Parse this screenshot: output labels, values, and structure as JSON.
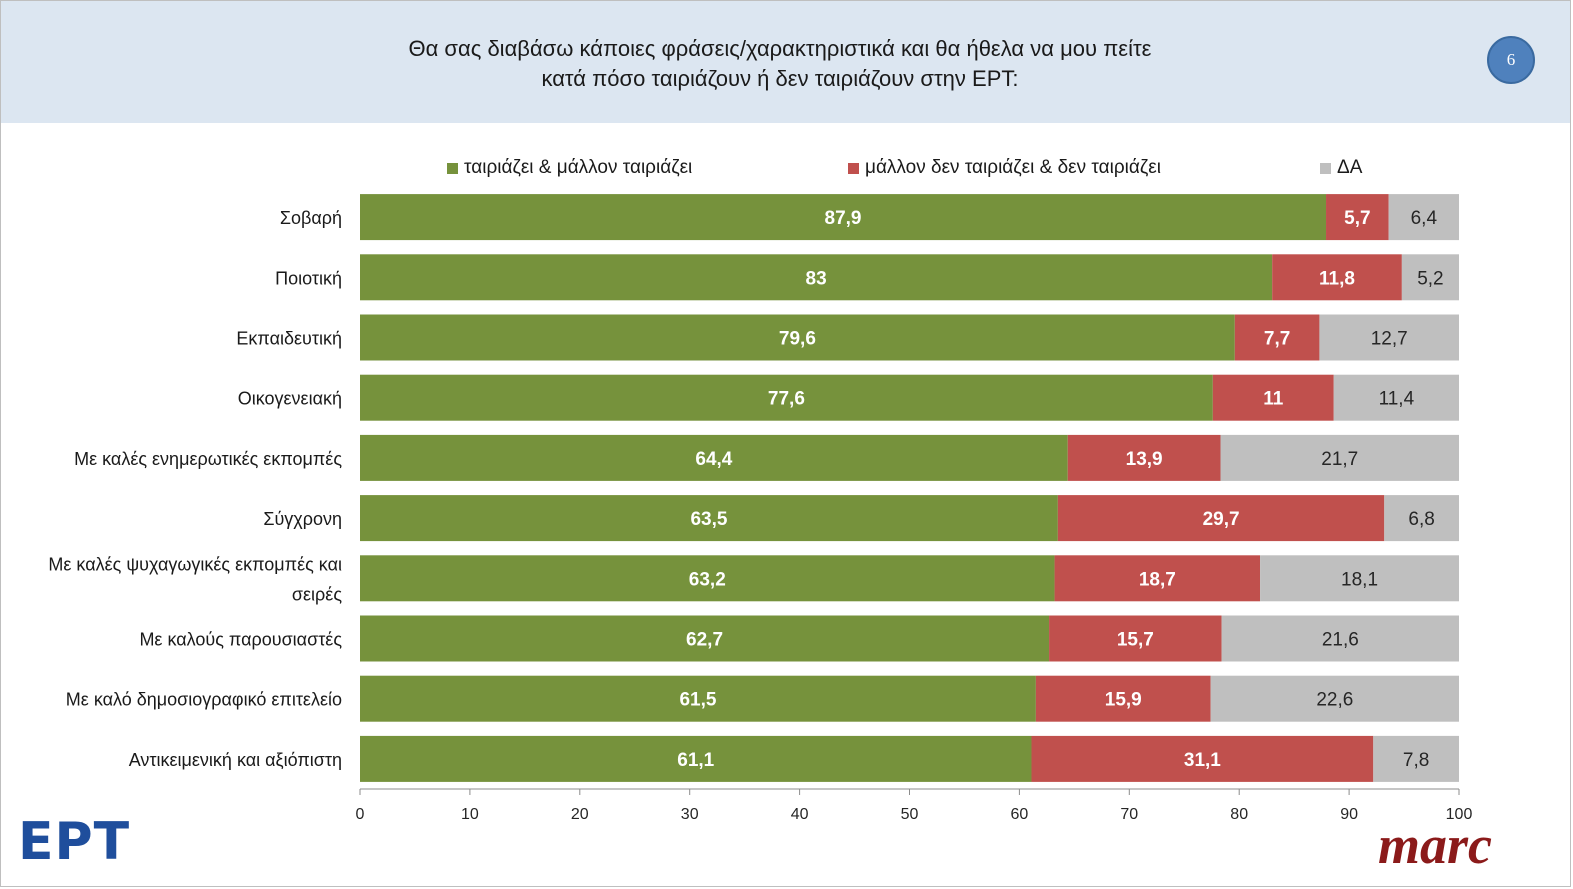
{
  "header": {
    "title_line1": "Θα σας διαβάσω κάποιες φράσεις/χαρακτηριστικά και θα ήθελα να μου πείτε",
    "title_line2": "κατά πόσο ταιριάζουν ή δεν ταιριάζουν στην ΕΡΤ:",
    "page_number": "6"
  },
  "logos": {
    "left": "ΕΡΤ",
    "right": "marc"
  },
  "colors": {
    "fit": "#76923c",
    "not_fit": "#c0504d",
    "dk": "#bfbfbf",
    "header_bg": "#dce6f1",
    "badge": "#4f81bd"
  },
  "chart_data": {
    "type": "bar",
    "orientation": "horizontal",
    "stacked": true,
    "categories": [
      "Σοβαρή",
      "Ποιοτική",
      "Εκπαιδευτική",
      "Οικογενειακή",
      "Με καλές ενημερωτικές εκπομπές",
      "Σύγχρονη",
      "Με καλές ψυχαγωγικές εκπομπές και σειρές",
      "Με καλούς παρουσιαστές",
      "Με καλό δημοσιογραφικό επιτελείο",
      "Αντικειμενική και αξιόπιστη"
    ],
    "category_label_lines": [
      [
        "Σοβαρή"
      ],
      [
        "Ποιοτική"
      ],
      [
        "Εκπαιδευτική"
      ],
      [
        "Οικογενειακή"
      ],
      [
        "Με καλές ενημερωτικές εκπομπές"
      ],
      [
        "Σύγχρονη"
      ],
      [
        "Με καλές ψυχαγωγικές εκπομπές και",
        "σειρές"
      ],
      [
        "Με καλούς παρουσιαστές"
      ],
      [
        "Με καλό δημοσιογραφικό επιτελείο"
      ],
      [
        "Αντικειμενική και αξιόπιστη"
      ]
    ],
    "series": [
      {
        "name": "ταιριάζει & μάλλον ταιριάζει",
        "color": "#76923c",
        "label_color": "#ffffff",
        "values": [
          87.9,
          83,
          79.6,
          77.6,
          64.4,
          63.5,
          63.2,
          62.7,
          61.5,
          61.1
        ],
        "labels": [
          "87,9",
          "83",
          "79,6",
          "77,6",
          "64,4",
          "63,5",
          "63,2",
          "62,7",
          "61,5",
          "61,1"
        ]
      },
      {
        "name": "μάλλον δεν ταιριάζει & δεν ταιριάζει",
        "color": "#c0504d",
        "label_color": "#ffffff",
        "values": [
          5.7,
          11.8,
          7.7,
          11,
          13.9,
          29.7,
          18.7,
          15.7,
          15.9,
          31.1
        ],
        "labels": [
          "5,7",
          "11,8",
          "7,7",
          "11",
          "13,9",
          "29,7",
          "18,7",
          "15,7",
          "15,9",
          "31,1"
        ]
      },
      {
        "name": "ΔΑ",
        "color": "#bfbfbf",
        "label_color": "#262626",
        "values": [
          6.4,
          5.2,
          12.7,
          11.4,
          21.7,
          6.8,
          18.1,
          21.6,
          22.6,
          7.8
        ],
        "labels": [
          "6,4",
          "5,2",
          "12,7",
          "11,4",
          "21,7",
          "6,8",
          "18,1",
          "21,6",
          "22,6",
          "7,8"
        ]
      }
    ],
    "xlim": [
      0,
      100
    ],
    "xticks": [
      "0",
      "10",
      "20",
      "30",
      "40",
      "50",
      "60",
      "70",
      "80",
      "90",
      "100"
    ],
    "grid": false,
    "legend_position": "top"
  }
}
